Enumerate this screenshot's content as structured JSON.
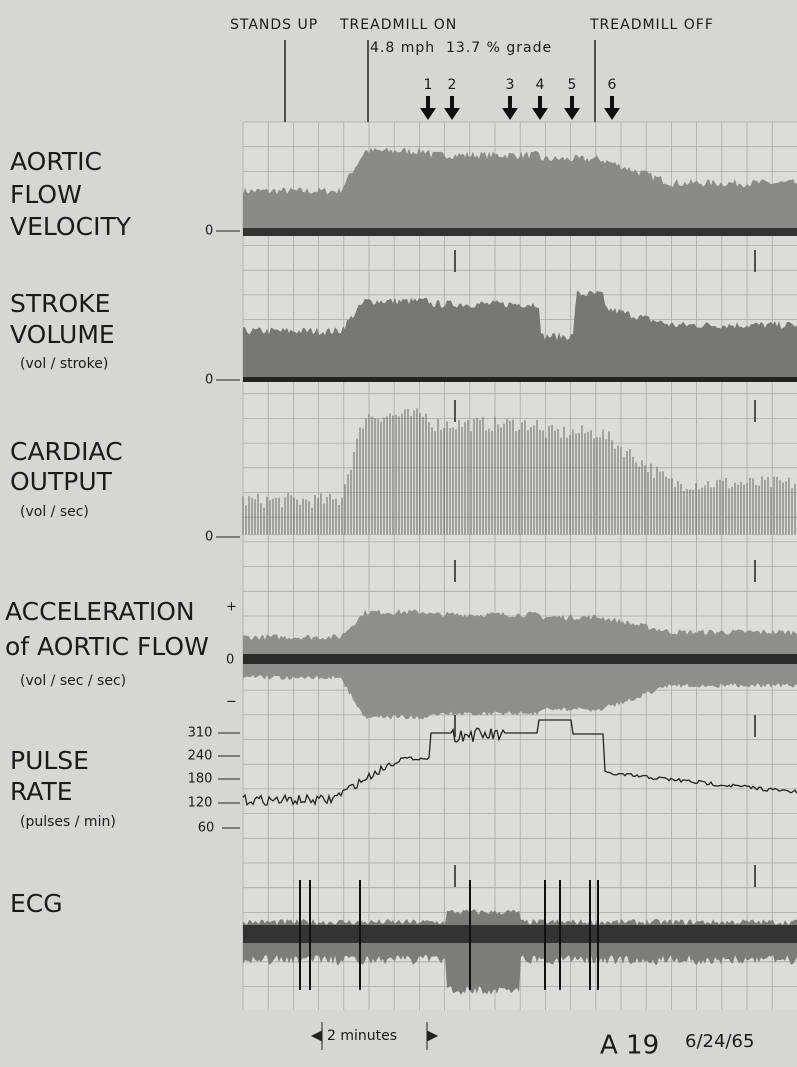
{
  "header": {
    "events": [
      "STANDS UP",
      "TREADMILL ON",
      "TREADMILL OFF"
    ],
    "treadmill_setting": "4.8 mph  13.7 % grade",
    "markers": [
      "1",
      "2",
      "3",
      "4",
      "5",
      "6"
    ]
  },
  "channels": [
    {
      "label_lines": [
        "AORTIC",
        "FLOW",
        "VELOCITY"
      ],
      "zero": "0"
    },
    {
      "label_lines": [
        "STROKE",
        "VOLUME"
      ],
      "unit": "(vol / stroke)",
      "zero": "0"
    },
    {
      "label_lines": [
        "CARDIAC",
        "OUTPUT"
      ],
      "unit": "(vol / sec)",
      "zero": "0"
    },
    {
      "label_lines": [
        "ACCELERATION",
        "of AORTIC FLOW"
      ],
      "unit": "(vol / sec / sec)",
      "plus": "+",
      "zero": "0",
      "minus": "−"
    },
    {
      "label_lines": [
        "PULSE",
        "RATE"
      ],
      "unit": "(pulses / min)",
      "ticks": [
        "310",
        "240",
        "180",
        "120",
        "60"
      ]
    },
    {
      "label_lines": [
        "ECG"
      ]
    }
  ],
  "footer": {
    "scale": "2 minutes",
    "record": "A 19",
    "date": "6/24/65"
  }
}
